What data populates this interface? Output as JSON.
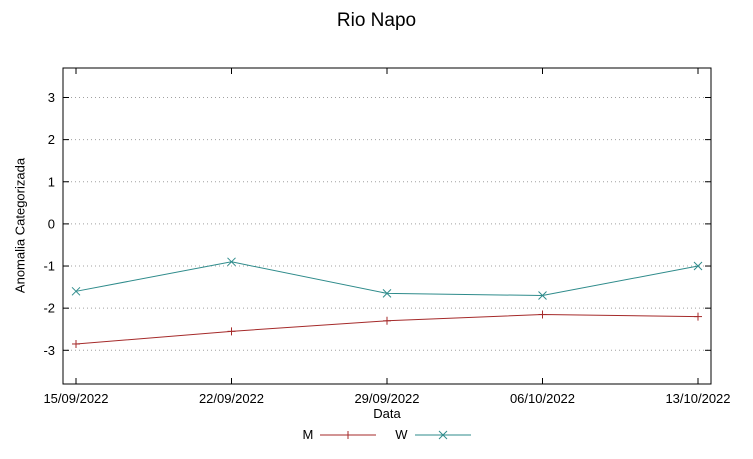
{
  "chart_data": {
    "type": "line",
    "title": "Rio Napo",
    "xlabel": "Data",
    "ylabel": "Anomalia Categorizada",
    "categories": [
      "15/09/2022",
      "22/09/2022",
      "29/09/2022",
      "06/10/2022",
      "13/10/2022"
    ],
    "series": [
      {
        "name": "M",
        "color": "#a52a2a",
        "marker": "plus",
        "values": [
          -2.85,
          -2.55,
          -2.3,
          -2.15,
          -2.2
        ]
      },
      {
        "name": "W",
        "color": "#2e8b8b",
        "marker": "cross",
        "values": [
          -1.6,
          -0.9,
          -1.65,
          -1.7,
          -1.0
        ]
      }
    ],
    "yticks": [
      -3,
      -2,
      -1,
      0,
      1,
      2,
      3
    ],
    "ylim": [
      -3.8,
      3.7
    ],
    "grid": "horizontal-dotted",
    "grid_color": "#a0a0a0",
    "border_color": "#000000",
    "legend_position": "bottom-center"
  }
}
